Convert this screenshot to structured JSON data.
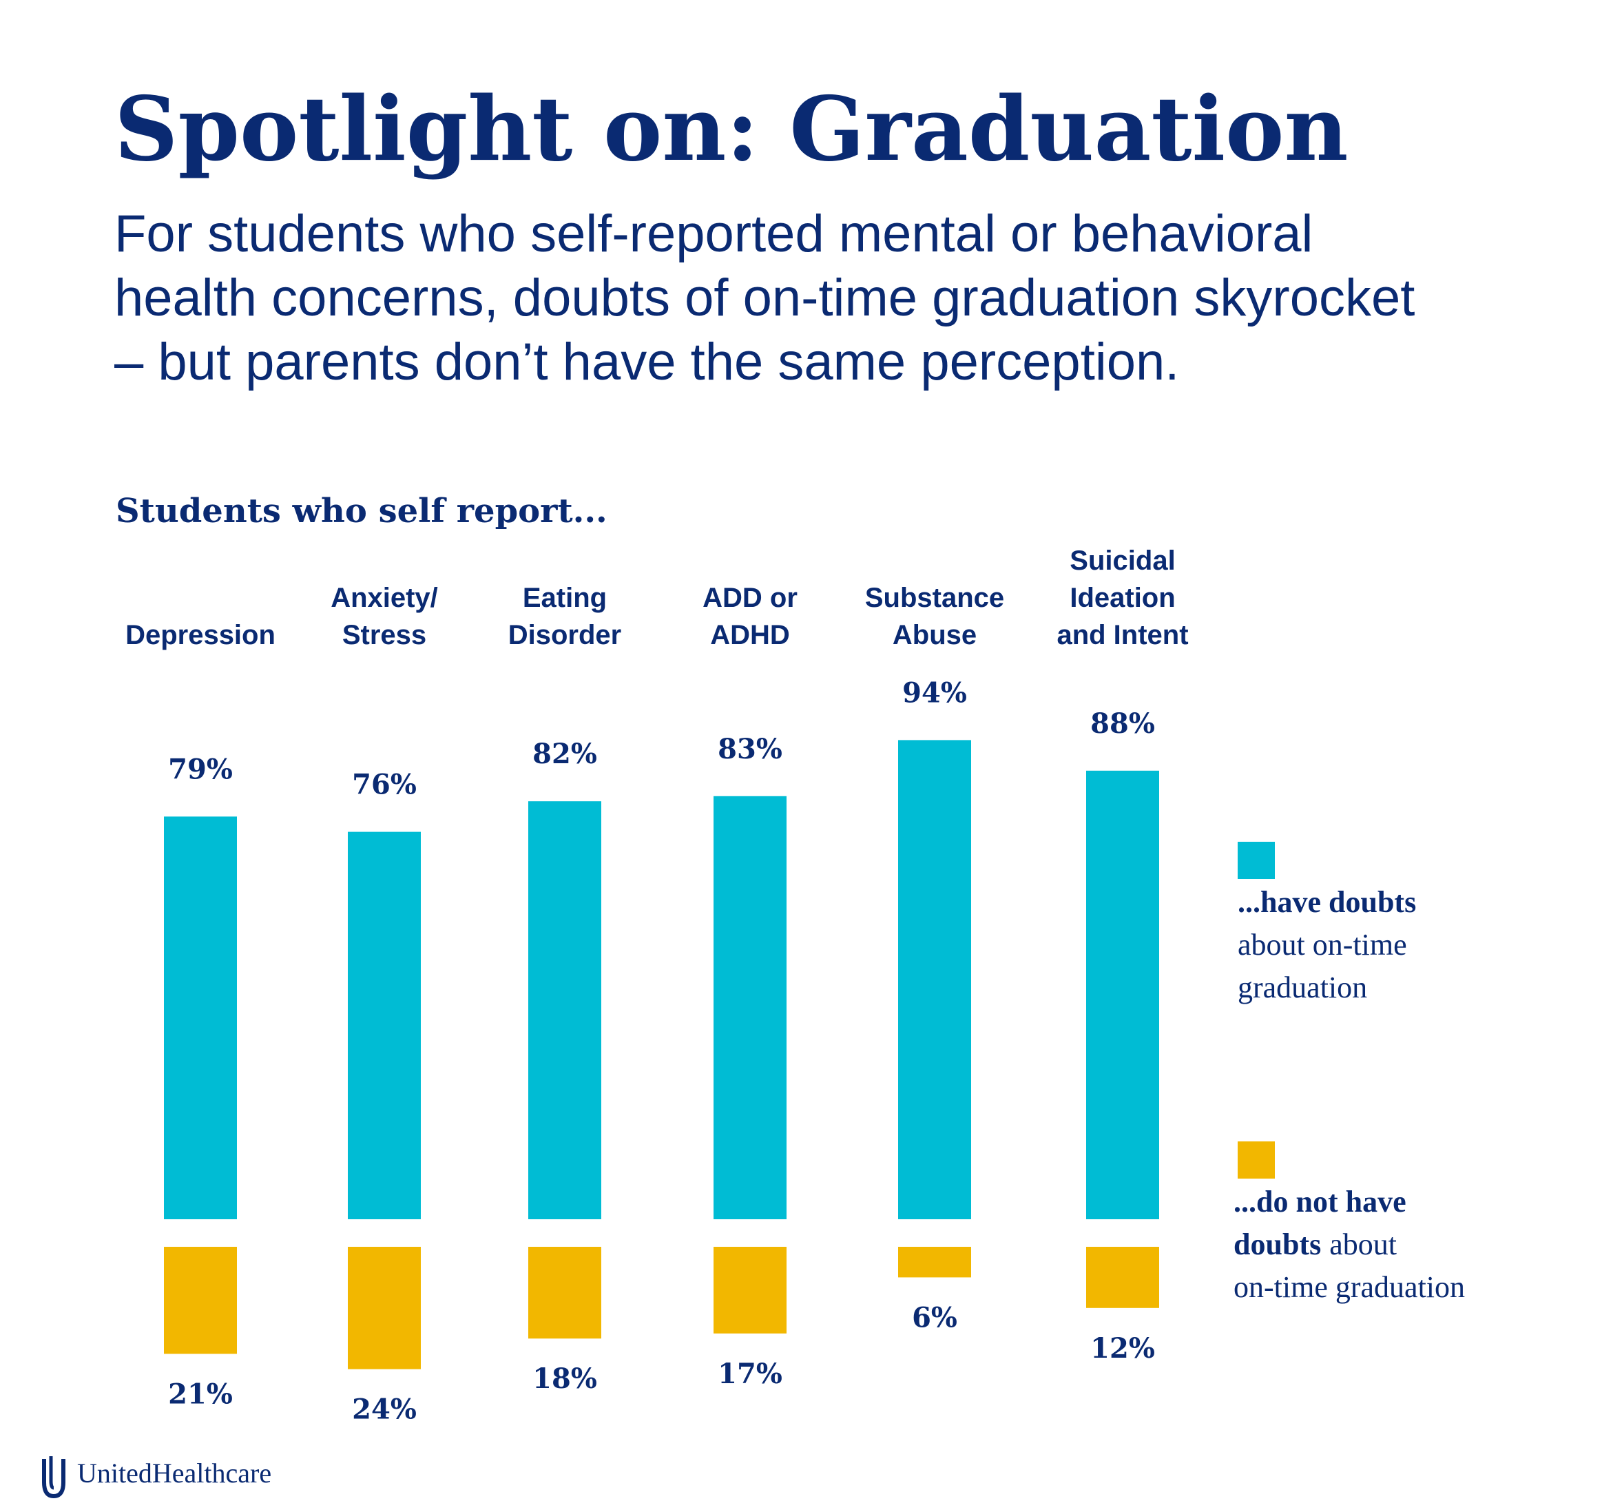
{
  "chart_data": {
    "type": "diverging-bar",
    "title": "Spotlight on: Graduation",
    "subtitle": [
      "For students who self-reported mental or behavioral",
      "health concerns, doubts of on-time graduation skyrocket",
      "– but parents don’t have the same perception."
    ],
    "section_label": "Students who self report...",
    "categories": [
      [
        "Depression"
      ],
      [
        "Anxiety/",
        "Stress"
      ],
      [
        "Eating",
        "Disorder"
      ],
      [
        "ADD or",
        "ADHD"
      ],
      [
        "Substance",
        "Abuse"
      ],
      [
        "Suicidal",
        "Ideation",
        "and Intent"
      ]
    ],
    "series": [
      {
        "name": [
          [
            {
              "text": "...have doubts",
              "bold": true
            }
          ],
          [
            {
              "text": "about on-time",
              "bold": false
            }
          ],
          [
            {
              "text": "graduation",
              "bold": false
            }
          ]
        ],
        "color": "#00bcd4",
        "values": [
          79,
          76,
          82,
          83,
          94,
          88
        ],
        "value_labels": [
          "79%",
          "76%",
          "82%",
          "83%",
          "94%",
          "88%"
        ]
      },
      {
        "name": [
          [
            {
              "text": "...do not have",
              "bold": true
            }
          ],
          [
            {
              "text": "doubts",
              "bold": true
            },
            {
              "text": "about",
              "bold": false
            }
          ],
          [
            {
              "text": "on-time graduation",
              "bold": false
            }
          ]
        ],
        "color": "#f2b700",
        "values": [
          21,
          24,
          18,
          17,
          6,
          12
        ],
        "value_labels": [
          "21%",
          "24%",
          "18%",
          "17%",
          "6%",
          "12%"
        ]
      }
    ],
    "legend": "right",
    "brand": "UnitedHealthcare"
  }
}
